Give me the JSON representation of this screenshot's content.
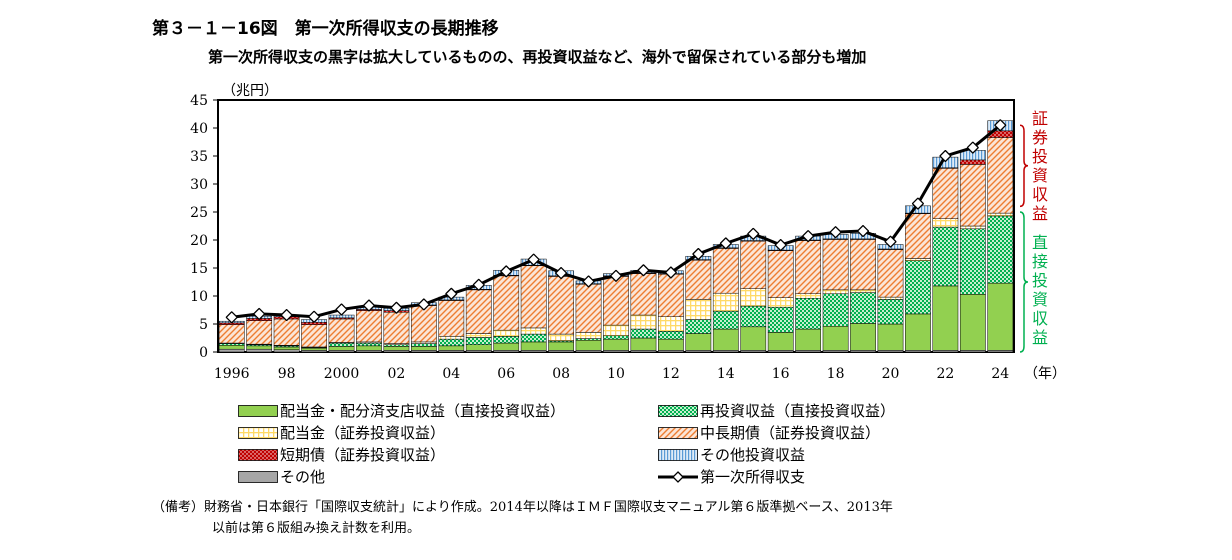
{
  "title": "第３－１－16図　第一次所得収支の長期推移",
  "subtitle": "第一次所得収支の黒字は拡大しているものの、再投資収益など、海外で留保されている部分も増加",
  "note": {
    "line1": "（備考）財務省・日本銀行「国際収支統計」により作成。2014年以降はＩＭＦ国際収支マニュアル第６版準拠ベース、2013年",
    "line2": "以前は第６版組み換え計数を利用。"
  },
  "brackets": {
    "securities": "証券投資収益",
    "direct": "直接投資収益"
  },
  "colors": {
    "dividends_direct": "#92D050",
    "reinvested": "#00B050",
    "dividends_sec": "#FFD966",
    "long_term": "#F4B183",
    "short_term": "#C00000",
    "other_inv": "#9DC3E6",
    "other": "#A6A6A6",
    "securities_bracket": "#C00000",
    "direct_bracket": "#00B050"
  },
  "legend": [
    {
      "key": "dividends_direct",
      "label": "配当金・配分済支店収益（直接投資収益）"
    },
    {
      "key": "reinvested",
      "label": "再投資収益（直接投資収益）"
    },
    {
      "key": "dividends_sec",
      "label": "配当金（証券投資収益）"
    },
    {
      "key": "long_term",
      "label": "中長期債（証券投資収益）"
    },
    {
      "key": "short_term",
      "label": "短期債（証券投資収益）"
    },
    {
      "key": "other_inv",
      "label": "その他投資収益"
    },
    {
      "key": "other",
      "label": "その他"
    },
    {
      "key": "total",
      "label": "第一次所得収支"
    }
  ],
  "chart_data": {
    "type": "bar",
    "stacked": true,
    "ylabel": "（兆円）",
    "xlabel": "（年）",
    "ylim": [
      0,
      45
    ],
    "yticks": [
      0,
      5,
      10,
      15,
      20,
      25,
      30,
      35,
      40,
      45
    ],
    "categories": [
      "1996",
      "1997",
      "1998",
      "1999",
      "2000",
      "2001",
      "2002",
      "2003",
      "2004",
      "2005",
      "2006",
      "2007",
      "2008",
      "2009",
      "2010",
      "2011",
      "2012",
      "2013",
      "2014",
      "2015",
      "2016",
      "2017",
      "2018",
      "2019",
      "2020",
      "2021",
      "2022",
      "2023",
      "2024"
    ],
    "xtick_labels": {
      "1996": "1996",
      "1998": "98",
      "2000": "2000",
      "2002": "02",
      "2004": "04",
      "2006": "06",
      "2008": "08",
      "2010": "10",
      "2012": "12",
      "2014": "14",
      "2016": "16",
      "2018": "18",
      "2020": "20",
      "2022": "22",
      "2024": "24"
    },
    "series": [
      {
        "key": "other",
        "values": [
          0.5,
          0.5,
          0.4,
          0.3,
          0.3,
          0.3,
          0.3,
          0.3,
          0.3,
          0.3,
          0.3,
          0.3,
          0.3,
          0.3,
          0.3,
          0.3,
          0.3,
          0.3,
          0.3,
          0.3,
          0.3,
          0.3,
          0.3,
          0.3,
          0.3,
          0.3,
          0.3,
          0.3,
          0.3
        ]
      },
      {
        "key": "dividends_direct",
        "values": [
          0.7,
          0.6,
          0.5,
          0.4,
          0.7,
          0.8,
          0.7,
          0.7,
          0.8,
          1.0,
          1.3,
          1.5,
          1.5,
          1.8,
          2.0,
          2.2,
          2.0,
          3.0,
          3.8,
          4.2,
          3.2,
          3.8,
          4.3,
          4.8,
          4.7,
          6.5,
          11.5,
          10.0,
          12.0
        ]
      },
      {
        "key": "reinvested",
        "values": [
          0.3,
          0.2,
          0.2,
          0.1,
          0.6,
          0.5,
          0.3,
          0.5,
          1.2,
          1.3,
          1.2,
          1.4,
          0.2,
          0.3,
          0.6,
          1.6,
          1.4,
          2.5,
          3.2,
          3.7,
          4.5,
          5.5,
          5.8,
          5.5,
          4.4,
          9.5,
          10.5,
          11.7,
          12.0
        ]
      },
      {
        "key": "dividends_sec",
        "values": [
          0.1,
          0.1,
          0.1,
          0.1,
          0.1,
          0.2,
          0.2,
          0.3,
          0.5,
          0.7,
          1.1,
          1.1,
          1.2,
          1.1,
          1.9,
          2.5,
          2.6,
          3.6,
          3.2,
          3.1,
          1.7,
          0.8,
          0.7,
          0.5,
          0.4,
          0.4,
          1.5,
          0.5,
          0.5
        ]
      },
      {
        "key": "long_term",
        "values": [
          3.3,
          4.2,
          4.7,
          4.0,
          4.2,
          5.6,
          5.6,
          6.5,
          6.4,
          7.8,
          9.7,
          11.1,
          10.3,
          8.6,
          8.7,
          7.4,
          7.6,
          7.0,
          8.0,
          8.5,
          8.4,
          9.5,
          9.0,
          9.0,
          8.5,
          8.0,
          9.0,
          11.0,
          13.5
        ]
      },
      {
        "key": "short_term",
        "values": [
          0.3,
          0.4,
          0.4,
          0.4,
          0.2,
          0.2,
          0.3,
          0.1,
          0.1,
          0.1,
          0.1,
          0.1,
          0.1,
          0.1,
          0.1,
          0.1,
          0.1,
          0.1,
          0.1,
          0.1,
          0.1,
          0.1,
          0.1,
          0.1,
          0.1,
          0.1,
          0.1,
          0.8,
          1.2
        ]
      },
      {
        "key": "other_inv",
        "values": [
          0.3,
          0.4,
          0.3,
          0.5,
          0.5,
          0.5,
          0.4,
          0.4,
          0.5,
          0.7,
          0.9,
          1.1,
          0.9,
          0.5,
          0.4,
          0.5,
          0.5,
          0.6,
          0.6,
          0.8,
          0.8,
          0.7,
          0.8,
          1.0,
          0.8,
          1.3,
          1.9,
          1.7,
          1.8
        ]
      }
    ],
    "total": {
      "key": "total",
      "values": [
        6.2,
        6.8,
        6.6,
        6.3,
        7.6,
        8.3,
        7.9,
        8.5,
        10.4,
        12.0,
        14.4,
        16.5,
        14.1,
        12.6,
        13.6,
        14.6,
        14.2,
        17.5,
        19.4,
        21.1,
        19.1,
        20.7,
        21.4,
        21.6,
        19.7,
        26.5,
        35.0,
        36.5,
        40.5
      ]
    }
  }
}
